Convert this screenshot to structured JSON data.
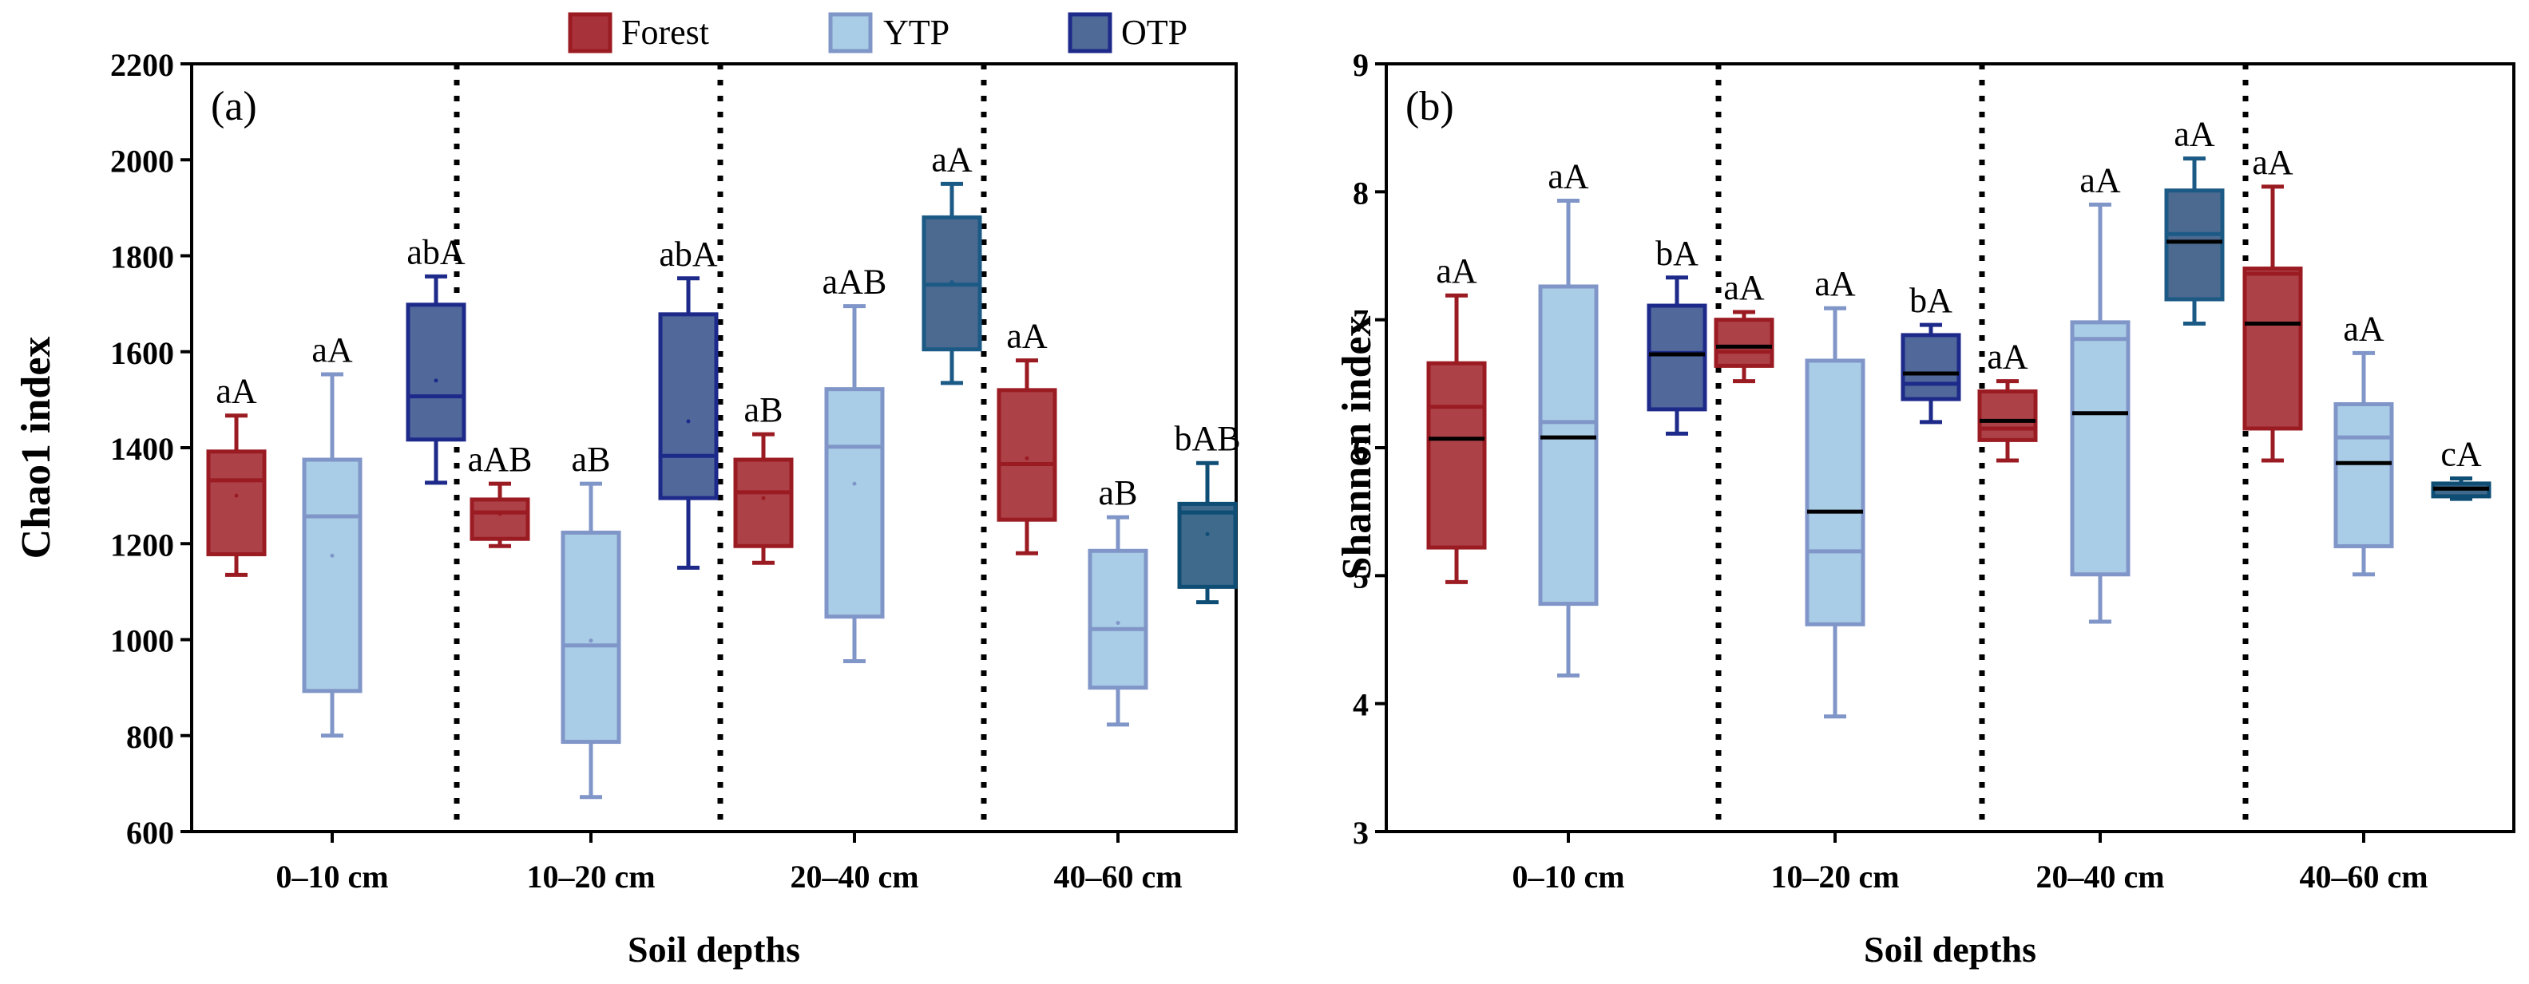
{
  "legend": [
    {
      "name": "Forest",
      "color": "#A8323A"
    },
    {
      "name": "YTP",
      "color": "#A9CDE6"
    },
    {
      "name": "OTP",
      "color": "#4F6A97"
    }
  ],
  "chart_data": [
    {
      "type": "box",
      "panel_label": "(a)",
      "ylabel": "Chao1 index",
      "xlabel": "Soil depths",
      "ylim": [
        600,
        2200
      ],
      "yticks": [
        600,
        800,
        1000,
        1200,
        1400,
        1600,
        1800,
        2000,
        2200
      ],
      "categories": [
        "0–10 cm",
        "10–20 cm",
        "20–40 cm",
        "40–60 cm"
      ],
      "series": [
        {
          "name": "Forest",
          "boxes": [
            {
              "min": 1135,
              "q1": 1178,
              "median": 1332,
              "q3": 1392,
              "max": 1467,
              "mean": 1300,
              "label": "aA"
            },
            {
              "min": 1195,
              "q1": 1210,
              "median": 1265,
              "q3": 1292,
              "max": 1325,
              "mean": 1262,
              "label": "aAB"
            },
            {
              "min": 1160,
              "q1": 1195,
              "median": 1307,
              "q3": 1375,
              "max": 1428,
              "mean": 1295,
              "label": "aB"
            },
            {
              "min": 1180,
              "q1": 1250,
              "median": 1366,
              "q3": 1520,
              "max": 1582,
              "mean": 1378,
              "label": "aA"
            }
          ]
        },
        {
          "name": "YTP",
          "boxes": [
            {
              "min": 800,
              "q1": 893,
              "median": 1257,
              "q3": 1375,
              "max": 1553,
              "mean": 1175,
              "label": "aA"
            },
            {
              "min": 672,
              "q1": 787,
              "median": 988,
              "q3": 1223,
              "max": 1325,
              "mean": 998,
              "label": "aB"
            },
            {
              "min": 955,
              "q1": 1048,
              "median": 1402,
              "q3": 1522,
              "max": 1695,
              "mean": 1325,
              "label": "aAB"
            },
            {
              "min": 823,
              "q1": 900,
              "median": 1022,
              "q3": 1185,
              "max": 1255,
              "mean": 1035,
              "label": "aB"
            }
          ]
        },
        {
          "name": "OTP",
          "boxes": [
            {
              "min": 1327,
              "q1": 1417,
              "median": 1507,
              "q3": 1698,
              "max": 1757,
              "mean": 1540,
              "label": "abA"
            },
            {
              "min": 1150,
              "q1": 1295,
              "median": 1383,
              "q3": 1678,
              "max": 1753,
              "mean": 1455,
              "label": "abA"
            },
            {
              "min": 1535,
              "q1": 1605,
              "median": 1740,
              "q3": 1880,
              "max": 1950,
              "mean": 1745,
              "label": "aA"
            },
            {
              "min": 1078,
              "q1": 1110,
              "median": 1265,
              "q3": 1283,
              "max": 1368,
              "mean": 1220,
              "label": "bAB"
            }
          ]
        }
      ]
    },
    {
      "type": "box",
      "panel_label": "(b)",
      "ylabel": "Shannon index",
      "xlabel": "Soil depths",
      "ylim": [
        3,
        9
      ],
      "yticks": [
        3,
        4,
        5,
        6,
        7,
        8,
        9
      ],
      "categories": [
        "0–10 cm",
        "10–20 cm",
        "20–40 cm",
        "40–60 cm"
      ],
      "series": [
        {
          "name": "Forest",
          "boxes": [
            {
              "min": 4.95,
              "q1": 5.22,
              "median": 6.32,
              "q3": 6.66,
              "max": 7.19,
              "mean": 6.07,
              "label": "aA"
            },
            {
              "min": 6.52,
              "q1": 6.64,
              "median": 6.75,
              "q3": 7.0,
              "max": 7.06,
              "mean": 6.79,
              "label": "aA"
            },
            {
              "min": 5.9,
              "q1": 6.06,
              "median": 6.15,
              "q3": 6.44,
              "max": 6.52,
              "mean": 6.21,
              "label": "aA"
            },
            {
              "min": 5.9,
              "q1": 6.15,
              "median": 7.36,
              "q3": 7.4,
              "max": 8.04,
              "mean": 6.97,
              "label": "aA"
            }
          ]
        },
        {
          "name": "YTP",
          "boxes": [
            {
              "min": 4.22,
              "q1": 4.78,
              "median": 6.2,
              "q3": 7.26,
              "max": 7.93,
              "mean": 6.08,
              "label": "aA"
            },
            {
              "min": 3.9,
              "q1": 4.62,
              "median": 5.19,
              "q3": 6.68,
              "max": 7.09,
              "mean": 5.5,
              "label": "aA"
            },
            {
              "min": 4.64,
              "q1": 5.01,
              "median": 6.85,
              "q3": 6.98,
              "max": 7.9,
              "mean": 6.27,
              "label": "aA"
            },
            {
              "min": 5.01,
              "q1": 5.23,
              "median": 6.08,
              "q3": 6.34,
              "max": 6.74,
              "mean": 5.88,
              "label": "aA"
            }
          ]
        },
        {
          "name": "OTP",
          "boxes": [
            {
              "min": 6.11,
              "q1": 6.3,
              "median": 6.74,
              "q3": 7.11,
              "max": 7.33,
              "mean": 6.73,
              "label": "bA"
            },
            {
              "min": 6.2,
              "q1": 6.38,
              "median": 6.5,
              "q3": 6.88,
              "max": 6.96,
              "mean": 6.58,
              "label": "bA"
            },
            {
              "min": 6.97,
              "q1": 7.16,
              "median": 7.67,
              "q3": 8.01,
              "max": 8.26,
              "mean": 7.61,
              "label": "aA"
            },
            {
              "min": 5.6,
              "q1": 5.62,
              "median": 5.68,
              "q3": 5.72,
              "max": 5.76,
              "mean": 5.68,
              "label": "cA"
            }
          ]
        }
      ]
    }
  ]
}
